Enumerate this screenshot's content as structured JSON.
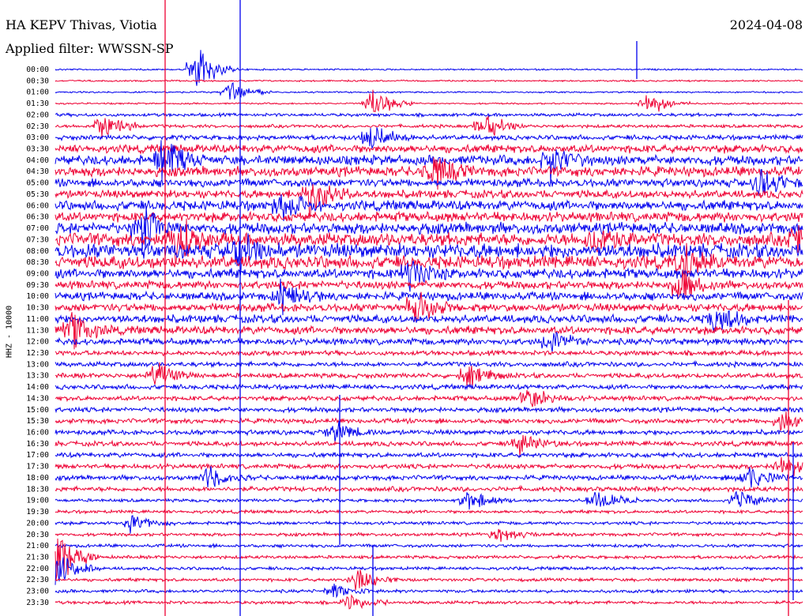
{
  "header": {
    "station": "HA KEPV Thivas, Viotia",
    "date": "2024-04-08",
    "filter": "Applied filter: WWSSN-SP"
  },
  "chart_data": {
    "type": "line",
    "title": "HA KEPV Thivas, Viotia",
    "ylabel": "HHZ - 10000",
    "row_labels": [
      "00:00",
      "00:30",
      "01:00",
      "01:30",
      "02:00",
      "02:30",
      "03:00",
      "03:30",
      "04:00",
      "04:30",
      "05:00",
      "05:30",
      "06:00",
      "06:30",
      "07:00",
      "07:30",
      "08:00",
      "08:30",
      "09:00",
      "09:30",
      "10:00",
      "10:30",
      "11:00",
      "11:30",
      "12:00",
      "12:30",
      "13:00",
      "13:30",
      "14:00",
      "14:30",
      "15:00",
      "15:30",
      "16:00",
      "16:30",
      "17:00",
      "17:30",
      "18:00",
      "18:30",
      "19:00",
      "19:30",
      "20:00",
      "20:30",
      "21:00",
      "21:30",
      "22:00",
      "22:30",
      "23:00",
      "23:30"
    ],
    "series_colors": [
      "#0000ee",
      "#ee0033"
    ],
    "noise_level": [
      1,
      1,
      1,
      1,
      2,
      2,
      3,
      5,
      6,
      6,
      5,
      5,
      6,
      6,
      7,
      8,
      9,
      8,
      6,
      5,
      5,
      5,
      5,
      5,
      4,
      3,
      3,
      3,
      3,
      3,
      3,
      3,
      3,
      3,
      3,
      3,
      3,
      3,
      2,
      2,
      2,
      2,
      2,
      2,
      2,
      2,
      2,
      2
    ],
    "events": [
      {
        "row": 0,
        "t": 0.185,
        "amp": 30
      },
      {
        "row": 2,
        "t": 0.23,
        "amp": 16
      },
      {
        "row": 3,
        "t": 0.42,
        "amp": 20
      },
      {
        "row": 3,
        "t": 0.79,
        "amp": 14
      },
      {
        "row": 5,
        "t": 0.06,
        "amp": 22
      },
      {
        "row": 5,
        "t": 0.57,
        "amp": 18
      },
      {
        "row": 6,
        "t": 0.42,
        "amp": 16
      },
      {
        "row": 8,
        "t": 0.14,
        "amp": 26
      },
      {
        "row": 8,
        "t": 0.66,
        "amp": 20
      },
      {
        "row": 9,
        "t": 0.5,
        "amp": 22
      },
      {
        "row": 10,
        "t": 0.94,
        "amp": 20
      },
      {
        "row": 11,
        "t": 0.34,
        "amp": 24
      },
      {
        "row": 12,
        "t": 0.3,
        "amp": 18
      },
      {
        "row": 14,
        "t": 0.11,
        "amp": 30
      },
      {
        "row": 15,
        "t": 0.16,
        "amp": 28
      },
      {
        "row": 15,
        "t": 0.72,
        "amp": 22
      },
      {
        "row": 15,
        "t": 0.99,
        "amp": 18
      },
      {
        "row": 16,
        "t": 0.24,
        "amp": 22
      },
      {
        "row": 17,
        "t": 0.84,
        "amp": 20
      },
      {
        "row": 18,
        "t": 0.47,
        "amp": 18
      },
      {
        "row": 19,
        "t": 0.83,
        "amp": 22
      },
      {
        "row": 20,
        "t": 0.3,
        "amp": 20
      },
      {
        "row": 21,
        "t": 0.48,
        "amp": 18
      },
      {
        "row": 22,
        "t": 0.88,
        "amp": 18
      },
      {
        "row": 23,
        "t": 0.02,
        "amp": 20
      },
      {
        "row": 24,
        "t": 0.66,
        "amp": 16
      },
      {
        "row": 27,
        "t": 0.13,
        "amp": 16
      },
      {
        "row": 27,
        "t": 0.55,
        "amp": 14
      },
      {
        "row": 29,
        "t": 0.63,
        "amp": 14
      },
      {
        "row": 31,
        "t": 0.97,
        "amp": 14
      },
      {
        "row": 32,
        "t": 0.37,
        "amp": 12
      },
      {
        "row": 33,
        "t": 0.62,
        "amp": 12
      },
      {
        "row": 35,
        "t": 0.97,
        "amp": 14
      },
      {
        "row": 36,
        "t": 0.2,
        "amp": 14
      },
      {
        "row": 36,
        "t": 0.92,
        "amp": 16
      },
      {
        "row": 38,
        "t": 0.55,
        "amp": 14
      },
      {
        "row": 38,
        "t": 0.72,
        "amp": 14
      },
      {
        "row": 38,
        "t": 0.91,
        "amp": 12
      },
      {
        "row": 40,
        "t": 0.1,
        "amp": 10
      },
      {
        "row": 41,
        "t": 0.59,
        "amp": 10
      },
      {
        "row": 43,
        "t": 0.0,
        "amp": 30
      },
      {
        "row": 44,
        "t": 0.0,
        "amp": 22
      },
      {
        "row": 45,
        "t": 0.4,
        "amp": 14
      },
      {
        "row": 46,
        "t": 0.37,
        "amp": 10
      },
      {
        "row": 47,
        "t": 0.39,
        "amp": 10
      }
    ]
  }
}
